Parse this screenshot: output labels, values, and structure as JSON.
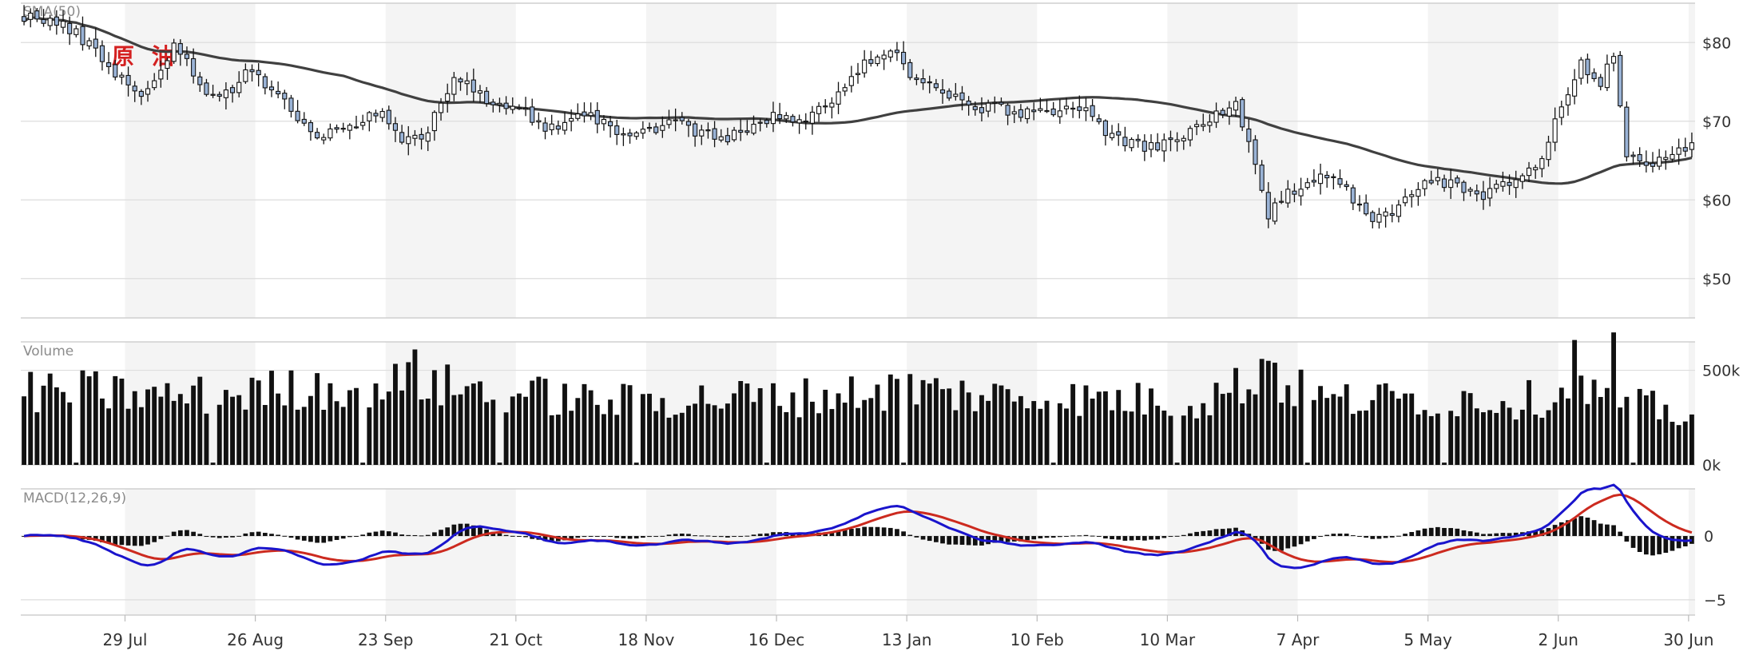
{
  "chart_data": {
    "type": "candlestick",
    "brand_label": "原 油",
    "panels": {
      "price": {
        "label": "SMA(50)",
        "ylim": [
          45,
          85
        ],
        "ticks": [
          {
            "value": 80,
            "label": "$80"
          },
          {
            "value": 70,
            "label": "$70"
          },
          {
            "value": 60,
            "label": "$60"
          },
          {
            "value": 50,
            "label": "$50"
          }
        ]
      },
      "volume": {
        "label": "Volume",
        "ylim": [
          0,
          650000
        ],
        "ticks": [
          {
            "value": 500000,
            "label": "500k"
          },
          {
            "value": 0,
            "label": "0k"
          }
        ]
      },
      "macd": {
        "label": "MACD(12,26,9)",
        "ylim": [
          -6.2,
          3.7
        ],
        "ticks": [
          {
            "value": 0,
            "label": "0"
          },
          {
            "value": -5,
            "label": "−5"
          }
        ]
      }
    },
    "x_ticks": [
      "29 Jul",
      "26 Aug",
      "23 Sep",
      "21 Oct",
      "18 Nov",
      "16 Dec",
      "13 Jan",
      "10 Feb",
      "10 Mar",
      "7 Apr",
      "5 May",
      "2 Jun",
      "30 Jun"
    ],
    "close_anchors": [
      [
        0,
        83.5
      ],
      [
        5,
        82.5
      ],
      [
        9,
        80.5
      ],
      [
        12,
        78
      ],
      [
        18,
        73
      ],
      [
        23,
        79.5
      ],
      [
        28,
        74
      ],
      [
        30,
        73
      ],
      [
        35,
        76.5
      ],
      [
        39,
        73.5
      ],
      [
        45,
        67.5
      ],
      [
        50,
        69.5
      ],
      [
        55,
        71.5
      ],
      [
        58,
        67
      ],
      [
        62,
        69
      ],
      [
        66,
        76
      ],
      [
        69,
        74
      ],
      [
        72,
        71.5
      ],
      [
        75,
        72
      ],
      [
        78,
        70.5
      ],
      [
        81,
        69
      ],
      [
        85,
        71.5
      ],
      [
        89,
        70
      ],
      [
        93,
        68
      ],
      [
        96,
        69
      ],
      [
        100,
        70
      ],
      [
        104,
        68.5
      ],
      [
        108,
        67.5
      ],
      [
        112,
        70
      ],
      [
        116,
        70.5
      ],
      [
        120,
        70
      ],
      [
        125,
        73.5
      ],
      [
        130,
        78
      ],
      [
        133,
        79.5
      ],
      [
        136,
        76
      ],
      [
        140,
        74
      ],
      [
        145,
        72
      ],
      [
        150,
        71.5
      ],
      [
        155,
        71
      ],
      [
        160,
        72
      ],
      [
        163,
        71
      ],
      [
        168,
        67.5
      ],
      [
        173,
        66.5
      ],
      [
        178,
        68
      ],
      [
        182,
        70.5
      ],
      [
        186,
        72
      ],
      [
        189,
        64
      ],
      [
        191,
        58
      ],
      [
        195,
        61.5
      ],
      [
        199,
        63.5
      ],
      [
        203,
        61.5
      ],
      [
        207,
        57
      ],
      [
        211,
        59
      ],
      [
        215,
        63
      ],
      [
        220,
        61.5
      ],
      [
        224,
        60.5
      ],
      [
        229,
        62.5
      ],
      [
        233,
        65
      ],
      [
        236,
        72
      ],
      [
        239,
        77
      ],
      [
        242,
        75
      ],
      [
        244,
        78
      ],
      [
        246,
        65.5
      ],
      [
        250,
        65
      ],
      [
        254,
        66.5
      ],
      [
        256,
        66.5
      ]
    ],
    "volume_base": [
      [
        0,
        380000
      ],
      [
        10,
        390000
      ],
      [
        20,
        360000
      ],
      [
        30,
        370000
      ],
      [
        45,
        410000
      ],
      [
        60,
        430000
      ],
      [
        75,
        380000
      ],
      [
        90,
        330000
      ],
      [
        105,
        350000
      ],
      [
        120,
        360000
      ],
      [
        135,
        400000
      ],
      [
        150,
        360000
      ],
      [
        165,
        350000
      ],
      [
        180,
        330000
      ],
      [
        190,
        470000
      ],
      [
        200,
        340000
      ],
      [
        215,
        350000
      ],
      [
        230,
        340000
      ],
      [
        240,
        390000
      ],
      [
        256,
        250000
      ]
    ],
    "volume_spikes": [
      [
        60,
        610000
      ],
      [
        111,
        430000
      ],
      [
        136,
        480000
      ],
      [
        163,
        420000
      ],
      [
        190,
        560000
      ],
      [
        191,
        550000
      ],
      [
        192,
        540000
      ],
      [
        238,
        660000
      ],
      [
        244,
        700000
      ]
    ],
    "volume_gaps": [
      8,
      29,
      52,
      73,
      94,
      114,
      135,
      158,
      177,
      197,
      218,
      247
    ],
    "sma_period": 50,
    "macd_fast": 12,
    "macd_slow": 26,
    "macd_signal": 9,
    "colors": {
      "up_candle": "#ffffff",
      "down_candle": "#9ab3d6",
      "candle_outline": "#111111",
      "sma_line": "#404040",
      "macd_line": "#1a14cc",
      "signal_line": "#cc2a1f",
      "histogram": "#111111",
      "volume_bar": "#111111",
      "week_band": "#f4f4f4",
      "grid": "#dddddd",
      "brand": "#d42020"
    }
  }
}
